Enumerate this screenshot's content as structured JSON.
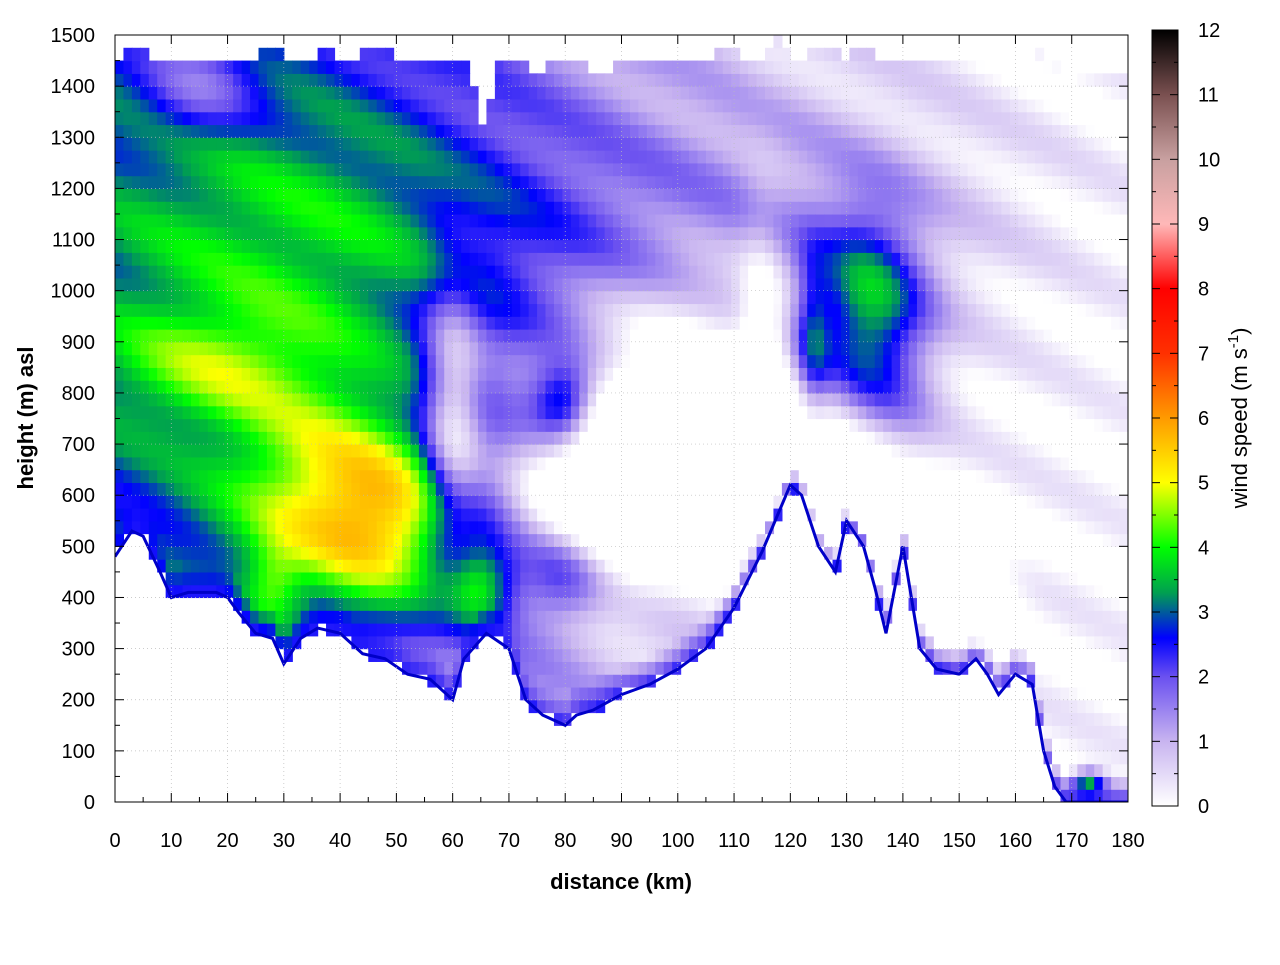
{
  "chart_data": {
    "type": "heatmap",
    "title": "",
    "xlabel": "distance (km)",
    "ylabel": "height (m) asl",
    "xlim": [
      0,
      180
    ],
    "ylim": [
      0,
      1500
    ],
    "x_ticks": [
      0,
      10,
      20,
      30,
      40,
      50,
      60,
      70,
      80,
      90,
      100,
      110,
      120,
      130,
      140,
      150,
      160,
      170,
      180
    ],
    "y_ticks": [
      0,
      100,
      200,
      300,
      400,
      500,
      600,
      700,
      800,
      900,
      1000,
      1100,
      1200,
      1300,
      1400,
      1500
    ],
    "grid": true,
    "colorbar": {
      "label_prefix": "wind speed (m s",
      "label_exponent": "-1",
      "label_suffix": ")",
      "range": [
        0,
        12
      ],
      "ticks": [
        0,
        1,
        2,
        3,
        4,
        5,
        6,
        7,
        8,
        9,
        10,
        11,
        12
      ],
      "colors": [
        {
          "v": 0,
          "c": "#ffffff"
        },
        {
          "v": 1,
          "c": "#c8b4f0"
        },
        {
          "v": 2,
          "c": "#6a50f0"
        },
        {
          "v": 2.6,
          "c": "#0000ff"
        },
        {
          "v": 3.3,
          "c": "#00a050"
        },
        {
          "v": 4,
          "c": "#00ff00"
        },
        {
          "v": 5,
          "c": "#ffff00"
        },
        {
          "v": 6,
          "c": "#ff9a00"
        },
        {
          "v": 7,
          "c": "#ff3000"
        },
        {
          "v": 8,
          "c": "#ff0000"
        },
        {
          "v": 9,
          "c": "#ffb8b8"
        },
        {
          "v": 10,
          "c": "#c8a0a0"
        },
        {
          "v": 11,
          "c": "#7a5050"
        },
        {
          "v": 12,
          "c": "#000000"
        }
      ]
    },
    "terrain_km": [
      0,
      3,
      5,
      8,
      10,
      13,
      16,
      18,
      20,
      22,
      25,
      28,
      30,
      33,
      36,
      40,
      44,
      48,
      52,
      56,
      58,
      60,
      62,
      66,
      70,
      73,
      76,
      80,
      82,
      85,
      90,
      95,
      100,
      105,
      110,
      115,
      120,
      122,
      125,
      128,
      130,
      133,
      135,
      137,
      140,
      143,
      146,
      150,
      153,
      155,
      157,
      160,
      163,
      165,
      167,
      169,
      172,
      175,
      180
    ],
    "terrain_m": [
      480,
      530,
      520,
      450,
      400,
      410,
      410,
      410,
      400,
      370,
      330,
      320,
      270,
      320,
      340,
      330,
      290,
      280,
      250,
      240,
      220,
      200,
      280,
      330,
      300,
      200,
      170,
      150,
      170,
      180,
      210,
      230,
      260,
      300,
      380,
      490,
      620,
      600,
      500,
      450,
      550,
      500,
      420,
      330,
      500,
      300,
      260,
      250,
      280,
      250,
      210,
      250,
      230,
      100,
      30,
      0,
      0,
      0,
      0
    ],
    "top_m": [
      1450,
      1480,
      1460,
      1440,
      1460,
      1460,
      1460,
      1440,
      1460,
      1480,
      1460,
      1440,
      1470,
      1450,
      1460,
      1470,
      1460,
      1440,
      1460,
      1450,
      1470,
      1330,
      1440,
      1460,
      1420,
      1450,
      1460,
      1440,
      1430,
      1450,
      1460,
      1440,
      1460,
      1450,
      1460,
      1480,
      1450,
      1460,
      1490,
      1450,
      1480,
      1470,
      1460,
      1480,
      1450,
      1440,
      1450,
      1460,
      1440,
      1450,
      1460,
      1440,
      1450,
      1470,
      1440,
      1430,
      1430,
      1430,
      1430
    ],
    "components": [
      {
        "x": 0,
        "y": 1000,
        "sx": 90,
        "sy": 3000,
        "v": 2.8
      },
      {
        "x": 40,
        "y": 1100,
        "sx": 40,
        "sy": 300,
        "v": 1.4
      },
      {
        "x": 115,
        "y": 1150,
        "sx": 45,
        "sy": 250,
        "v": 0.8
      },
      {
        "x": 40,
        "y": 600,
        "sx": 20,
        "sy": 200,
        "v": 2.7
      },
      {
        "x": 50,
        "y": 520,
        "sx": 14,
        "sy": 150,
        "v": 1.6
      },
      {
        "x": 28,
        "y": 420,
        "sx": 5,
        "sy": 80,
        "v": 1.2
      },
      {
        "x": 18,
        "y": 850,
        "sx": 20,
        "sy": 120,
        "v": 1.3
      },
      {
        "x": 65,
        "y": 420,
        "sx": 6,
        "sy": 80,
        "v": 2.2
      },
      {
        "x": 60,
        "y": 750,
        "sx": 5,
        "sy": 250,
        "v": -2.2
      },
      {
        "x": 85,
        "y": 600,
        "sx": 14,
        "sy": 200,
        "v": -2.4
      },
      {
        "x": 100,
        "y": 750,
        "sx": 18,
        "sy": 250,
        "v": -2.0
      },
      {
        "x": 80,
        "y": 780,
        "sx": 6,
        "sy": 80,
        "v": 2.8
      },
      {
        "x": 80,
        "y": 450,
        "sx": 8,
        "sy": 100,
        "v": 1.8
      },
      {
        "x": 134,
        "y": 950,
        "sx": 10,
        "sy": 200,
        "v": 2.9
      },
      {
        "x": 124,
        "y": 900,
        "sx": 3,
        "sy": 150,
        "v": 1.5
      },
      {
        "x": 128,
        "y": 550,
        "sx": 14,
        "sy": 180,
        "v": -2.6
      },
      {
        "x": 150,
        "y": 400,
        "sx": 8,
        "sy": 120,
        "v": -1.8
      },
      {
        "x": 115,
        "y": 800,
        "sx": 4,
        "sy": 300,
        "v": -1.5
      },
      {
        "x": 173,
        "y": 30,
        "sx": 3,
        "sy": 30,
        "v": 4.5
      },
      {
        "x": 140,
        "y": 700,
        "sx": 8,
        "sy": 200,
        "v": 0.6
      },
      {
        "x": 15,
        "y": 1400,
        "sx": 10,
        "sy": 100,
        "v": -1.2
      }
    ]
  }
}
